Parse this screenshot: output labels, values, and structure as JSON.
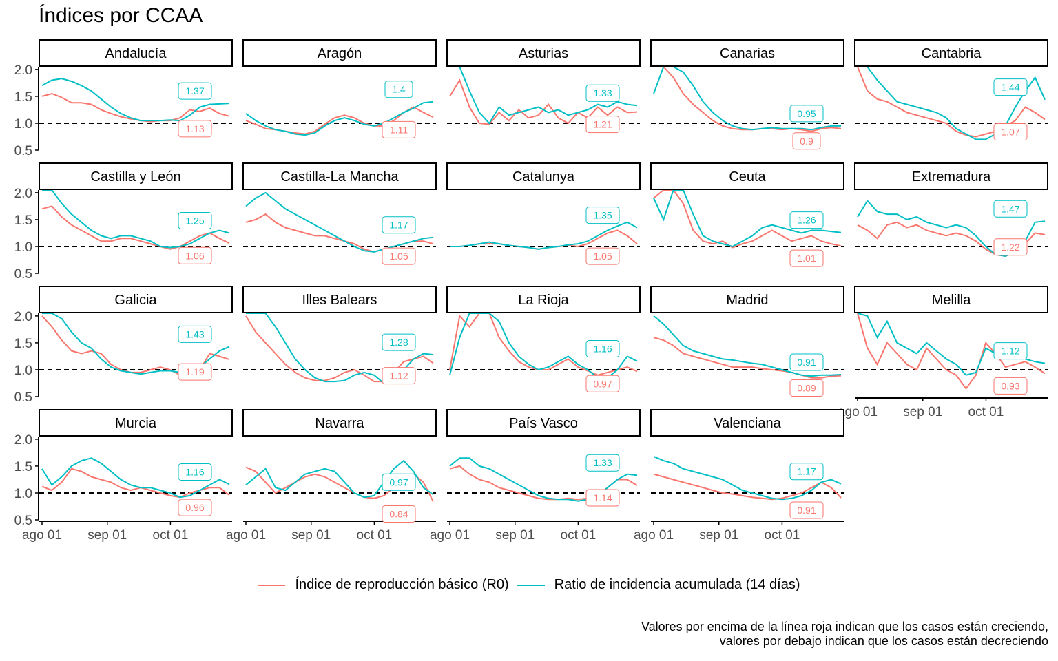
{
  "title": "Índices por CCAA",
  "legend": {
    "r0_label": "Índice de reproducción básico (R0)",
    "ratio_label": "Ratio de incidencia acumulada (14 días)"
  },
  "caption": {
    "line1": "Valores por encima de la línea roja indican que los casos están creciendo,",
    "line2": "valores por debajo indican que los casos están decreciendo"
  },
  "colors": {
    "r0": "#F8766D",
    "ratio": "#00BFC4",
    "reference": "#000000"
  },
  "chart_data": {
    "type": "line",
    "facet_layout": {
      "columns": 5,
      "rows": 4
    },
    "x_ticks": [
      "ago 01",
      "sep 01",
      "oct 01"
    ],
    "x_tick_days": [
      0,
      31,
      61
    ],
    "x_range_days": [
      0,
      89
    ],
    "y_ticks": [
      "0.5",
      "1.0",
      "1.5",
      "2.0"
    ],
    "y_tick_values": [
      0.5,
      1.0,
      1.5,
      2.0
    ],
    "ylim": [
      0.5,
      2.05
    ],
    "reference_line": 1.0,
    "grid": false,
    "legend_position": "bottom",
    "panels": [
      {
        "name": "Andalucía",
        "r0": [
          1.5,
          1.55,
          1.48,
          1.38,
          1.38,
          1.35,
          1.25,
          1.18,
          1.12,
          1.08,
          1.05,
          1.03,
          1.05,
          1.05,
          1.1,
          1.25,
          1.22,
          1.28,
          1.18,
          1.13
        ],
        "ratio": [
          1.7,
          1.8,
          1.83,
          1.78,
          1.7,
          1.6,
          1.45,
          1.3,
          1.18,
          1.1,
          1.05,
          1.05,
          1.05,
          1.06,
          1.05,
          1.15,
          1.3,
          1.35,
          1.36,
          1.37
        ],
        "r0_label": "1.13",
        "ratio_label": "1.37"
      },
      {
        "name": "Aragón",
        "r0": [
          1.05,
          0.98,
          0.9,
          0.88,
          0.85,
          0.82,
          0.8,
          0.85,
          0.98,
          1.1,
          1.15,
          1.1,
          1.0,
          0.95,
          0.95,
          1.05,
          1.2,
          1.3,
          1.2,
          1.11
        ],
        "ratio": [
          1.18,
          1.05,
          0.95,
          0.88,
          0.85,
          0.8,
          0.78,
          0.82,
          0.95,
          1.05,
          1.1,
          1.05,
          0.98,
          0.95,
          1.0,
          1.1,
          1.2,
          1.28,
          1.38,
          1.4
        ],
        "r0_label": "1.11",
        "ratio_label": "1.4"
      },
      {
        "name": "Asturias",
        "r0": [
          1.5,
          1.8,
          1.3,
          1.0,
          0.98,
          1.2,
          1.05,
          1.25,
          1.1,
          1.15,
          1.35,
          1.1,
          1.0,
          1.2,
          1.1,
          1.3,
          1.15,
          1.3,
          1.2,
          1.21
        ],
        "ratio": [
          2.05,
          2.05,
          1.6,
          1.2,
          1.0,
          1.3,
          1.15,
          1.2,
          1.25,
          1.3,
          1.2,
          1.25,
          1.15,
          1.2,
          1.25,
          1.35,
          1.3,
          1.4,
          1.35,
          1.33
        ],
        "r0_label": "1.21",
        "ratio_label": "1.33"
      },
      {
        "name": "Canarias",
        "r0": [
          2.05,
          2.05,
          1.85,
          1.55,
          1.35,
          1.2,
          1.05,
          0.95,
          0.9,
          0.88,
          0.88,
          0.9,
          0.9,
          0.88,
          0.9,
          0.88,
          0.85,
          0.9,
          0.92,
          0.9
        ],
        "ratio": [
          1.55,
          2.05,
          2.05,
          1.95,
          1.7,
          1.4,
          1.2,
          1.05,
          0.95,
          0.9,
          0.88,
          0.9,
          0.92,
          0.9,
          0.9,
          0.9,
          0.88,
          0.92,
          0.95,
          0.95
        ],
        "r0_label": "0.9",
        "ratio_label": "0.95"
      },
      {
        "name": "Cantabria",
        "r0": [
          2.05,
          1.6,
          1.45,
          1.4,
          1.3,
          1.2,
          1.15,
          1.1,
          1.05,
          1.0,
          0.85,
          0.78,
          0.75,
          0.8,
          0.85,
          0.95,
          1.05,
          1.3,
          1.2,
          1.07
        ],
        "ratio": [
          2.05,
          2.05,
          1.8,
          1.6,
          1.4,
          1.35,
          1.3,
          1.25,
          1.2,
          1.1,
          0.9,
          0.8,
          0.7,
          0.7,
          0.8,
          0.95,
          1.3,
          1.6,
          1.85,
          1.44
        ],
        "r0_label": "1.07",
        "ratio_label": "1.44"
      },
      {
        "name": "Castilla y León",
        "r0": [
          1.7,
          1.75,
          1.55,
          1.4,
          1.3,
          1.2,
          1.1,
          1.1,
          1.15,
          1.15,
          1.1,
          1.05,
          1.0,
          0.95,
          1.0,
          1.1,
          1.2,
          1.25,
          1.15,
          1.06
        ],
        "ratio": [
          2.05,
          2.05,
          1.8,
          1.6,
          1.45,
          1.3,
          1.2,
          1.15,
          1.2,
          1.2,
          1.15,
          1.1,
          1.0,
          0.98,
          1.0,
          1.05,
          1.15,
          1.25,
          1.3,
          1.25
        ],
        "r0_label": "1.06",
        "ratio_label": "1.25"
      },
      {
        "name": "Castilla-La Mancha",
        "r0": [
          1.45,
          1.5,
          1.6,
          1.45,
          1.35,
          1.3,
          1.25,
          1.2,
          1.2,
          1.15,
          1.1,
          1.05,
          0.95,
          0.9,
          0.95,
          1.0,
          1.05,
          1.1,
          1.1,
          1.05
        ],
        "ratio": [
          1.75,
          1.9,
          2.0,
          1.85,
          1.7,
          1.6,
          1.5,
          1.4,
          1.3,
          1.2,
          1.1,
          1.0,
          0.92,
          0.9,
          0.95,
          1.0,
          1.05,
          1.1,
          1.15,
          1.17
        ],
        "r0_label": "1.05",
        "ratio_label": "1.17"
      },
      {
        "name": "Catalunya",
        "r0": [
          1.0,
          1.0,
          1.02,
          1.05,
          1.05,
          1.05,
          1.02,
          1.0,
          0.98,
          0.95,
          0.98,
          1.0,
          1.02,
          1.0,
          1.05,
          1.15,
          1.25,
          1.3,
          1.2,
          1.05
        ],
        "ratio": [
          1.0,
          1.0,
          1.02,
          1.05,
          1.08,
          1.05,
          1.02,
          1.0,
          0.98,
          0.95,
          0.98,
          1.0,
          1.03,
          1.05,
          1.1,
          1.2,
          1.3,
          1.38,
          1.45,
          1.35
        ],
        "r0_label": "1.05",
        "ratio_label": "1.35"
      },
      {
        "name": "Ceuta",
        "r0": [
          1.9,
          2.05,
          2.05,
          1.8,
          1.3,
          1.1,
          1.05,
          1.1,
          0.98,
          1.05,
          1.1,
          1.2,
          1.3,
          1.2,
          1.1,
          1.15,
          1.2,
          1.1,
          1.05,
          1.01
        ],
        "ratio": [
          1.9,
          1.5,
          2.05,
          2.05,
          1.6,
          1.2,
          1.1,
          1.05,
          1.0,
          1.1,
          1.2,
          1.35,
          1.4,
          1.35,
          1.3,
          1.25,
          1.3,
          1.3,
          1.28,
          1.26
        ],
        "r0_label": "1.01",
        "ratio_label": "1.26"
      },
      {
        "name": "Extremadura",
        "r0": [
          1.4,
          1.3,
          1.15,
          1.4,
          1.45,
          1.35,
          1.4,
          1.3,
          1.25,
          1.2,
          1.25,
          1.2,
          1.1,
          0.95,
          0.85,
          0.82,
          0.9,
          1.05,
          1.25,
          1.22
        ],
        "ratio": [
          1.55,
          1.85,
          1.65,
          1.6,
          1.6,
          1.5,
          1.55,
          1.45,
          1.4,
          1.35,
          1.4,
          1.35,
          1.2,
          1.0,
          0.85,
          0.82,
          0.9,
          1.1,
          1.45,
          1.47
        ],
        "r0_label": "1.22",
        "ratio_label": "1.47"
      },
      {
        "name": "Galicia",
        "r0": [
          2.0,
          1.8,
          1.55,
          1.35,
          1.3,
          1.35,
          1.3,
          1.1,
          1.0,
          0.95,
          0.95,
          1.0,
          1.05,
          1.0,
          0.9,
          0.85,
          1.0,
          1.3,
          1.25,
          1.19
        ],
        "ratio": [
          2.05,
          2.05,
          1.95,
          1.7,
          1.5,
          1.4,
          1.2,
          1.05,
          0.98,
          0.95,
          0.92,
          0.95,
          0.98,
          0.98,
          0.95,
          0.95,
          1.05,
          1.2,
          1.35,
          1.43
        ],
        "r0_label": "1.19",
        "ratio_label": "1.43"
      },
      {
        "name": "Illes Balears",
        "r0": [
          2.0,
          1.7,
          1.5,
          1.3,
          1.1,
          0.95,
          0.85,
          0.8,
          0.8,
          0.85,
          0.95,
          1.0,
          0.9,
          0.78,
          0.78,
          0.95,
          1.15,
          1.2,
          1.25,
          1.12
        ],
        "ratio": [
          2.05,
          2.05,
          2.05,
          1.8,
          1.5,
          1.2,
          1.0,
          0.85,
          0.78,
          0.78,
          0.8,
          0.9,
          0.95,
          0.9,
          0.75,
          0.85,
          1.0,
          1.2,
          1.3,
          1.28
        ],
        "r0_label": "1.12",
        "ratio_label": "1.28"
      },
      {
        "name": "La Rioja",
        "r0": [
          1.0,
          2.0,
          1.8,
          2.05,
          2.05,
          1.6,
          1.35,
          1.15,
          1.05,
          1.0,
          1.0,
          1.1,
          1.2,
          1.05,
          0.98,
          0.9,
          0.95,
          1.0,
          1.05,
          0.97
        ],
        "ratio": [
          0.9,
          1.6,
          2.05,
          2.05,
          2.05,
          1.9,
          1.5,
          1.25,
          1.1,
          1.0,
          1.05,
          1.15,
          1.25,
          1.1,
          1.0,
          0.85,
          0.85,
          1.0,
          1.25,
          1.16
        ],
        "r0_label": "0.97",
        "ratio_label": "1.16"
      },
      {
        "name": "Madrid",
        "r0": [
          1.6,
          1.55,
          1.45,
          1.3,
          1.25,
          1.2,
          1.15,
          1.1,
          1.05,
          1.05,
          1.05,
          1.02,
          1.0,
          0.98,
          0.95,
          0.9,
          0.85,
          0.85,
          0.88,
          0.89
        ],
        "ratio": [
          2.0,
          1.85,
          1.65,
          1.45,
          1.35,
          1.3,
          1.25,
          1.2,
          1.18,
          1.15,
          1.12,
          1.1,
          1.05,
          1.0,
          0.95,
          0.9,
          0.88,
          0.9,
          0.9,
          0.91
        ],
        "r0_label": "0.89",
        "ratio_label": "0.91"
      },
      {
        "name": "Melilla",
        "r0": [
          2.05,
          1.4,
          1.1,
          1.5,
          1.3,
          1.1,
          1.0,
          1.4,
          1.2,
          1.0,
          0.9,
          0.65,
          0.9,
          1.5,
          1.3,
          1.05,
          1.1,
          1.15,
          1.05,
          0.93
        ],
        "ratio": [
          2.05,
          2.0,
          1.6,
          1.9,
          1.5,
          1.4,
          1.3,
          1.5,
          1.35,
          1.2,
          1.1,
          0.9,
          0.95,
          1.4,
          1.3,
          1.3,
          1.35,
          1.2,
          1.15,
          1.12
        ],
        "r0_label": "0.93",
        "ratio_label": "1.12"
      },
      {
        "name": "Murcia",
        "r0": [
          1.12,
          1.05,
          1.2,
          1.45,
          1.4,
          1.3,
          1.25,
          1.2,
          1.1,
          1.05,
          1.1,
          1.05,
          1.0,
          0.95,
          0.92,
          1.0,
          1.05,
          1.1,
          1.1,
          0.96
        ],
        "ratio": [
          1.45,
          1.15,
          1.3,
          1.5,
          1.6,
          1.65,
          1.55,
          1.4,
          1.25,
          1.15,
          1.1,
          1.1,
          1.05,
          1.0,
          0.92,
          0.95,
          1.05,
          1.15,
          1.25,
          1.16
        ],
        "r0_label": "0.96",
        "ratio_label": "1.16"
      },
      {
        "name": "Navarra",
        "r0": [
          1.48,
          1.4,
          1.2,
          1.0,
          1.1,
          1.2,
          1.3,
          1.35,
          1.3,
          1.2,
          1.1,
          1.0,
          0.92,
          0.9,
          0.95,
          1.1,
          1.3,
          1.35,
          1.2,
          0.84
        ],
        "ratio": [
          1.15,
          1.3,
          1.45,
          1.1,
          1.05,
          1.2,
          1.35,
          1.4,
          1.45,
          1.4,
          1.2,
          1.0,
          0.92,
          0.95,
          1.2,
          1.45,
          1.6,
          1.4,
          1.1,
          0.97
        ],
        "r0_label": "0.84",
        "ratio_label": "0.97"
      },
      {
        "name": "País Vasco",
        "r0": [
          1.45,
          1.5,
          1.35,
          1.25,
          1.2,
          1.1,
          1.05,
          1.0,
          0.95,
          0.9,
          0.88,
          0.88,
          0.9,
          0.88,
          0.9,
          0.95,
          1.1,
          1.25,
          1.25,
          1.14
        ],
        "ratio": [
          1.5,
          1.65,
          1.65,
          1.5,
          1.45,
          1.35,
          1.25,
          1.15,
          1.05,
          0.95,
          0.9,
          0.88,
          0.88,
          0.85,
          0.88,
          0.95,
          1.1,
          1.25,
          1.35,
          1.33
        ],
        "r0_label": "1.14",
        "ratio_label": "1.33"
      },
      {
        "name": "Valenciana",
        "r0": [
          1.35,
          1.3,
          1.25,
          1.2,
          1.15,
          1.1,
          1.05,
          1.0,
          0.98,
          0.95,
          0.92,
          0.9,
          0.88,
          0.9,
          0.95,
          1.0,
          1.1,
          1.2,
          1.1,
          0.91
        ],
        "ratio": [
          1.68,
          1.6,
          1.55,
          1.45,
          1.4,
          1.35,
          1.3,
          1.25,
          1.15,
          1.05,
          1.0,
          0.95,
          0.9,
          0.88,
          0.9,
          0.95,
          1.05,
          1.2,
          1.25,
          1.17
        ],
        "r0_label": "0.91",
        "ratio_label": "1.17"
      }
    ]
  }
}
